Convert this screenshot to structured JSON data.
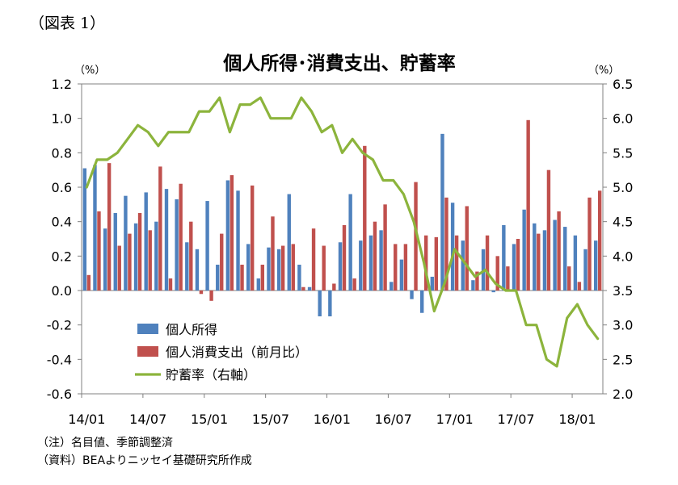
{
  "figure_label": "（図表 1）",
  "notes": [
    "（注）名目値、季節調整済",
    "（資料）BEAよりニッセイ基礎研究所作成"
  ],
  "chart_data": {
    "type": "bar",
    "title": "個人所得･消費支出、貯蓄率",
    "y_left_unit": "（%）",
    "y_right_unit": "（%）",
    "y_left_lim": [
      -0.6,
      1.2
    ],
    "y_left_ticks": [
      "1.2",
      "1.0",
      "0.8",
      "0.6",
      "0.4",
      "0.2",
      "0.0",
      "-0.2",
      "-0.4",
      "-0.6"
    ],
    "y_right_lim": [
      2.0,
      6.5
    ],
    "y_right_ticks": [
      "6.5",
      "6.0",
      "5.5",
      "5.0",
      "4.5",
      "4.0",
      "3.5",
      "3.0",
      "2.5",
      "2.0"
    ],
    "x_tick_labels": [
      "14/01",
      "14/07",
      "15/01",
      "15/07",
      "16/01",
      "16/07",
      "17/01",
      "17/07",
      "18/01"
    ],
    "x_tick_every": 6,
    "categories": [
      "14/01",
      "14/02",
      "14/03",
      "14/04",
      "14/05",
      "14/06",
      "14/07",
      "14/08",
      "14/09",
      "14/10",
      "14/11",
      "14/12",
      "15/01",
      "15/02",
      "15/03",
      "15/04",
      "15/05",
      "15/06",
      "15/07",
      "15/08",
      "15/09",
      "15/10",
      "15/11",
      "15/12",
      "16/01",
      "16/02",
      "16/03",
      "16/04",
      "16/05",
      "16/06",
      "16/07",
      "16/08",
      "16/09",
      "16/10",
      "16/11",
      "16/12",
      "17/01",
      "17/02",
      "17/03",
      "17/04",
      "17/05",
      "17/06",
      "17/07",
      "17/08",
      "17/09",
      "17/10",
      "17/11",
      "17/12",
      "18/01",
      "18/02",
      "18/03"
    ],
    "series": [
      {
        "name": "個人所得",
        "type": "bar",
        "axis": "left",
        "color": "#4f81bd",
        "values": [
          0.71,
          0.73,
          0.36,
          0.45,
          0.55,
          0.39,
          0.57,
          0.4,
          0.59,
          0.53,
          0.28,
          0.24,
          0.52,
          0.15,
          0.64,
          0.58,
          0.27,
          0.07,
          0.25,
          0.24,
          0.56,
          0.15,
          0.02,
          -0.15,
          -0.15,
          0.28,
          0.56,
          0.29,
          0.32,
          0.35,
          0.05,
          0.18,
          -0.05,
          -0.13,
          0.08,
          0.91,
          0.51,
          0.29,
          0.06,
          0.24,
          -0.01,
          0.38,
          0.27,
          0.47,
          0.39,
          0.35,
          0.41,
          0.37,
          0.32,
          0.24,
          0.29
        ]
      },
      {
        "name": "個人消費支出（前月比）",
        "type": "bar",
        "axis": "left",
        "color": "#c0504d",
        "values": [
          0.09,
          0.46,
          0.74,
          0.26,
          0.33,
          0.45,
          0.35,
          0.72,
          0.07,
          0.62,
          0.4,
          -0.02,
          -0.06,
          0.33,
          0.67,
          0.15,
          0.61,
          0.15,
          0.43,
          0.26,
          0.27,
          0.02,
          0.36,
          0.26,
          0.04,
          0.38,
          0.07,
          0.84,
          0.4,
          0.5,
          0.27,
          0.27,
          0.63,
          0.32,
          0.31,
          0.54,
          0.32,
          0.49,
          0.11,
          0.32,
          0.2,
          0.14,
          0.3,
          0.99,
          0.33,
          0.7,
          0.46,
          0.14,
          0.05,
          0.54,
          0.58
        ]
      },
      {
        "name": "貯蓄率（右軸）",
        "type": "line",
        "axis": "right",
        "color": "#8cb43c",
        "values": [
          5.0,
          5.4,
          5.4,
          5.5,
          5.7,
          5.9,
          5.8,
          5.6,
          5.8,
          5.8,
          5.8,
          6.1,
          6.1,
          6.3,
          5.8,
          6.2,
          6.2,
          6.3,
          6.0,
          6.0,
          6.0,
          6.3,
          6.1,
          5.8,
          5.9,
          5.5,
          5.7,
          5.5,
          5.4,
          5.1,
          5.1,
          4.9,
          4.5,
          3.9,
          3.2,
          3.6,
          4.1,
          3.9,
          3.7,
          3.8,
          3.6,
          3.5,
          3.5,
          3.0,
          3.0,
          2.5,
          2.4,
          3.1,
          3.3,
          3.0,
          2.8
        ]
      }
    ]
  }
}
